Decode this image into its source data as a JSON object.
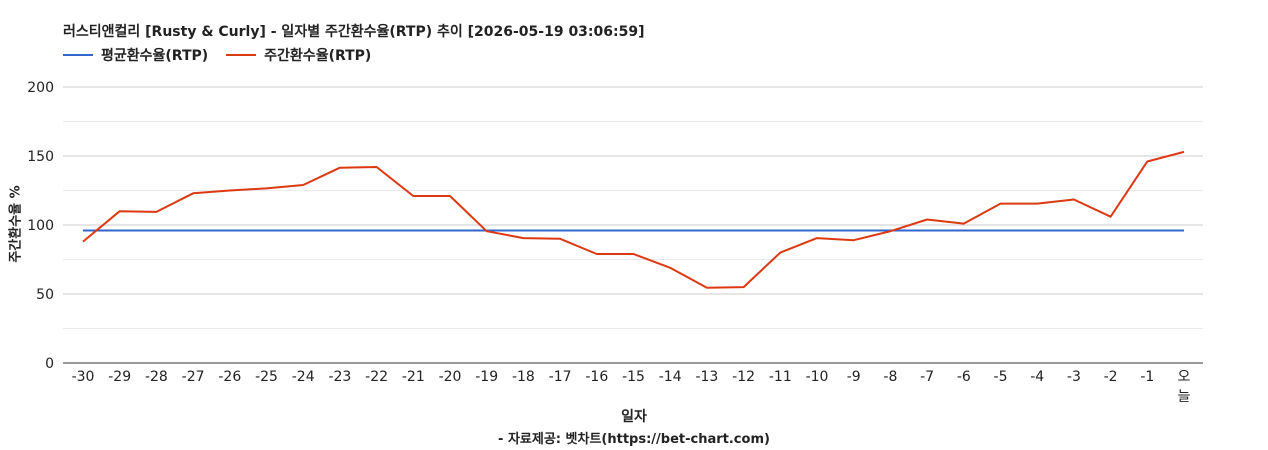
{
  "chart_data": {
    "type": "line",
    "title": "러스티앤컬리 [Rusty & Curly] - 일자별 주간환수율(RTP) 추이 [2026-05-19 03:06:59]",
    "xlabel": "일자",
    "ylabel": "주간환수율 %",
    "credit": "- 자료제공: 벳차트(https://bet-chart.com)",
    "categories": [
      "-30",
      "-29",
      "-28",
      "-27",
      "-26",
      "-25",
      "-24",
      "-23",
      "-22",
      "-21",
      "-20",
      "-19",
      "-18",
      "-17",
      "-16",
      "-15",
      "-14",
      "-13",
      "-12",
      "-11",
      "-10",
      "-9",
      "-8",
      "-7",
      "-6",
      "-5",
      "-4",
      "-3",
      "-2",
      "-1",
      "오늘"
    ],
    "ylim": [
      0,
      200
    ],
    "yticks": [
      "0",
      "50",
      "100",
      "150",
      "200"
    ],
    "grid": true,
    "legend_position": "top-left",
    "series": [
      {
        "name": "평균환수율(RTP)",
        "color": "#3366cc",
        "values": [
          96,
          96,
          96,
          96,
          96,
          96,
          96,
          96,
          96,
          96,
          96,
          96,
          96,
          96,
          96,
          96,
          96,
          96,
          96,
          96,
          96,
          96,
          96,
          96,
          96,
          96,
          96,
          96,
          96,
          96,
          96
        ]
      },
      {
        "name": "주간환수율(RTP)",
        "color": "#dc3912",
        "values": [
          88,
          110,
          109.5,
          123,
          125,
          126.5,
          129,
          141.5,
          142,
          121,
          121,
          95.5,
          90.5,
          90,
          79,
          79,
          69,
          54.5,
          55,
          80,
          90.5,
          89,
          95.5,
          104,
          101,
          115.5,
          115.5,
          118.5,
          106,
          146,
          153
        ]
      }
    ]
  }
}
